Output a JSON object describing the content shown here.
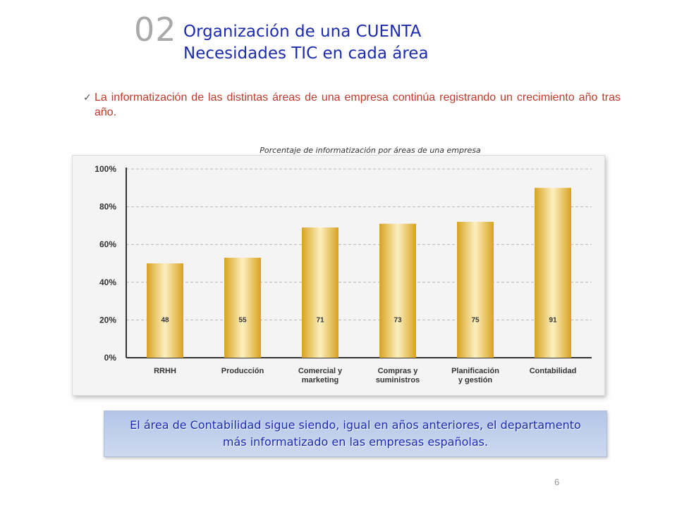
{
  "header": {
    "slide_number": "02",
    "title_line1": "Organización de una CUENTA",
    "title_line2": "Necesidades TIC en cada área"
  },
  "bullet": {
    "icon": "check-icon",
    "text": "La informatización de las distintas áreas de una empresa continúa registrando un crecimiento año tras año."
  },
  "chart_data": {
    "type": "bar",
    "title": "Porcentaje de informatización por áreas de una empresa",
    "categories": [
      [
        "RRHH"
      ],
      [
        "Producción"
      ],
      [
        "Comercial y",
        "marketing"
      ],
      [
        "Compras y",
        "suministros"
      ],
      [
        "Planificación",
        "y gestión"
      ],
      [
        "Contabilidad"
      ]
    ],
    "values": [
      48,
      55,
      71,
      73,
      75,
      91
    ],
    "bar_heights_percent": [
      50,
      53,
      69,
      71,
      72,
      90
    ],
    "y_ticks": [
      "0%",
      "20%",
      "40%",
      "60%",
      "80%",
      "100%"
    ],
    "ylim": [
      0,
      100
    ],
    "grid": true,
    "bar_color": "#e2b437"
  },
  "note": {
    "text": "El área de Contabilidad sigue siendo, igual en años anteriores, el departamento más informatizado en las empresas españolas."
  },
  "footer": {
    "page_number": "6"
  }
}
